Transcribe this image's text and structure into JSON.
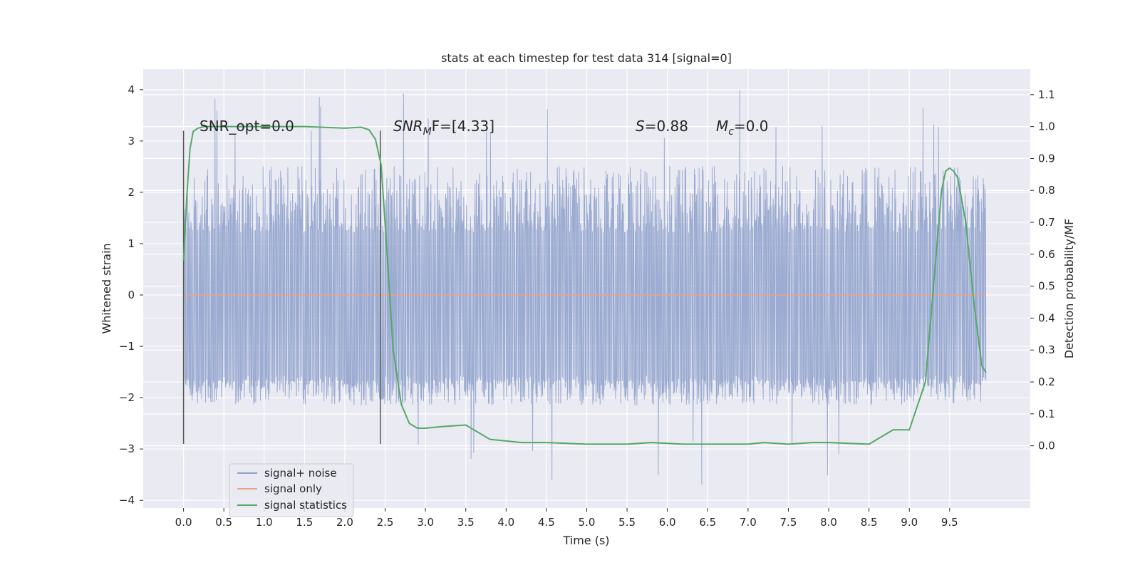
{
  "chart_data": {
    "type": "line",
    "title": "stats at each timestep for test data 314 [signal=0]",
    "xlabel": "Time (s)",
    "ylabel_left": "Whitened strain",
    "ylabel_right": "Detection probability/MF",
    "xlim": [
      -0.5,
      10.5
    ],
    "ylim_left": [
      -4.15,
      4.4
    ],
    "ylim_right": [
      -0.195,
      1.18
    ],
    "x_ticks": [
      "0.0",
      "0.5",
      "1.0",
      "1.5",
      "2.0",
      "2.5",
      "3.0",
      "3.5",
      "4.0",
      "4.5",
      "5.0",
      "5.5",
      "6.0",
      "6.5",
      "7.0",
      "7.5",
      "8.0",
      "8.5",
      "9.0",
      "9.5"
    ],
    "y_ticks_left": [
      "−4",
      "−3",
      "−2",
      "−1",
      "0",
      "1",
      "2",
      "3",
      "4"
    ],
    "y_ticks_right": [
      "0.0",
      "0.1",
      "0.2",
      "0.3",
      "0.4",
      "0.5",
      "0.6",
      "0.7",
      "0.8",
      "0.9",
      "1.0",
      "1.1"
    ],
    "grid": true,
    "legend_position": "lower-left",
    "annotations": {
      "snr_opt": "SNR_opt=0.0",
      "snr_mf_main": "SNR",
      "snr_mf_sub": "M",
      "snr_mf_rest": "F=[4.33]",
      "s_main": "S",
      "s_rest": "=0.88",
      "mc_main": "M",
      "mc_sub": "c",
      "mc_rest": "=0.0"
    },
    "vertical_markers": [
      {
        "x": 0.0,
        "y_range": [
          -2.9,
          3.2
        ]
      },
      {
        "x": 2.44,
        "y_range": [
          -2.9,
          3.2
        ]
      }
    ],
    "series": [
      {
        "name": "signal+ noise",
        "color": "#8da0cb",
        "x_range": [
          0.0,
          9.95
        ],
        "y_core": [
          -1.75,
          1.35
        ],
        "y_extremes": [
          -3.75,
          4.05
        ]
      },
      {
        "name": "signal only",
        "color": "#e8a48a",
        "x": [
          0.0,
          9.95
        ],
        "y": [
          0.0,
          0.0
        ]
      },
      {
        "name": "signal statistics",
        "color": "#55a868",
        "axis": "right",
        "x": [
          0.0,
          0.04,
          0.08,
          0.12,
          0.18,
          0.25,
          0.35,
          0.5,
          1.0,
          1.5,
          1.7,
          2.0,
          2.2,
          2.3,
          2.38,
          2.45,
          2.52,
          2.6,
          2.7,
          2.8,
          2.9,
          3.0,
          3.2,
          3.5,
          3.8,
          4.0,
          4.2,
          4.5,
          5.0,
          5.5,
          5.8,
          6.2,
          6.6,
          7.0,
          7.2,
          7.5,
          7.8,
          8.0,
          8.5,
          8.8,
          9.0,
          9.2,
          9.3,
          9.4,
          9.45,
          9.5,
          9.55,
          9.6,
          9.7,
          9.8,
          9.9,
          9.95
        ],
        "y": [
          0.58,
          0.78,
          0.93,
          0.985,
          0.995,
          1.0,
          1.0,
          1.0,
          1.0,
          1.0,
          0.998,
          0.995,
          0.998,
          0.99,
          0.96,
          0.88,
          0.62,
          0.3,
          0.13,
          0.07,
          0.055,
          0.055,
          0.06,
          0.065,
          0.02,
          0.015,
          0.01,
          0.01,
          0.005,
          0.005,
          0.01,
          0.005,
          0.005,
          0.005,
          0.01,
          0.005,
          0.01,
          0.01,
          0.005,
          0.05,
          0.05,
          0.2,
          0.5,
          0.8,
          0.86,
          0.87,
          0.86,
          0.84,
          0.7,
          0.45,
          0.25,
          0.23
        ]
      }
    ]
  }
}
